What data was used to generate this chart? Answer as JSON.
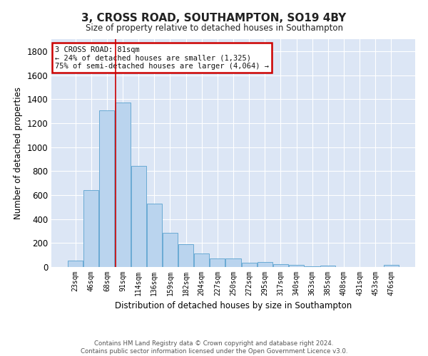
{
  "title": "3, CROSS ROAD, SOUTHAMPTON, SO19 4BY",
  "subtitle": "Size of property relative to detached houses in Southampton",
  "xlabel": "Distribution of detached houses by size in Southampton",
  "ylabel": "Number of detached properties",
  "categories": [
    "23sqm",
    "46sqm",
    "68sqm",
    "91sqm",
    "114sqm",
    "136sqm",
    "159sqm",
    "182sqm",
    "204sqm",
    "227sqm",
    "250sqm",
    "272sqm",
    "295sqm",
    "317sqm",
    "340sqm",
    "363sqm",
    "385sqm",
    "408sqm",
    "431sqm",
    "453sqm",
    "476sqm"
  ],
  "values": [
    55,
    640,
    1305,
    1370,
    845,
    530,
    285,
    190,
    110,
    70,
    70,
    35,
    40,
    25,
    20,
    5,
    10,
    0,
    0,
    0,
    15
  ],
  "bar_color": "#bad4ee",
  "bar_edge_color": "#6aaad4",
  "bg_color": "#dce6f5",
  "grid_color": "#ffffff",
  "annotation_box_text": "3 CROSS ROAD: 81sqm\n← 24% of detached houses are smaller (1,325)\n75% of semi-detached houses are larger (4,064) →",
  "annotation_box_color": "#cc0000",
  "vline_x": 2.56,
  "vline_color": "#cc0000",
  "footer": "Contains HM Land Registry data © Crown copyright and database right 2024.\nContains public sector information licensed under the Open Government Licence v3.0.",
  "ylim": [
    0,
    1900
  ],
  "yticks": [
    0,
    200,
    400,
    600,
    800,
    1000,
    1200,
    1400,
    1600,
    1800
  ],
  "fig_bg": "#ffffff"
}
